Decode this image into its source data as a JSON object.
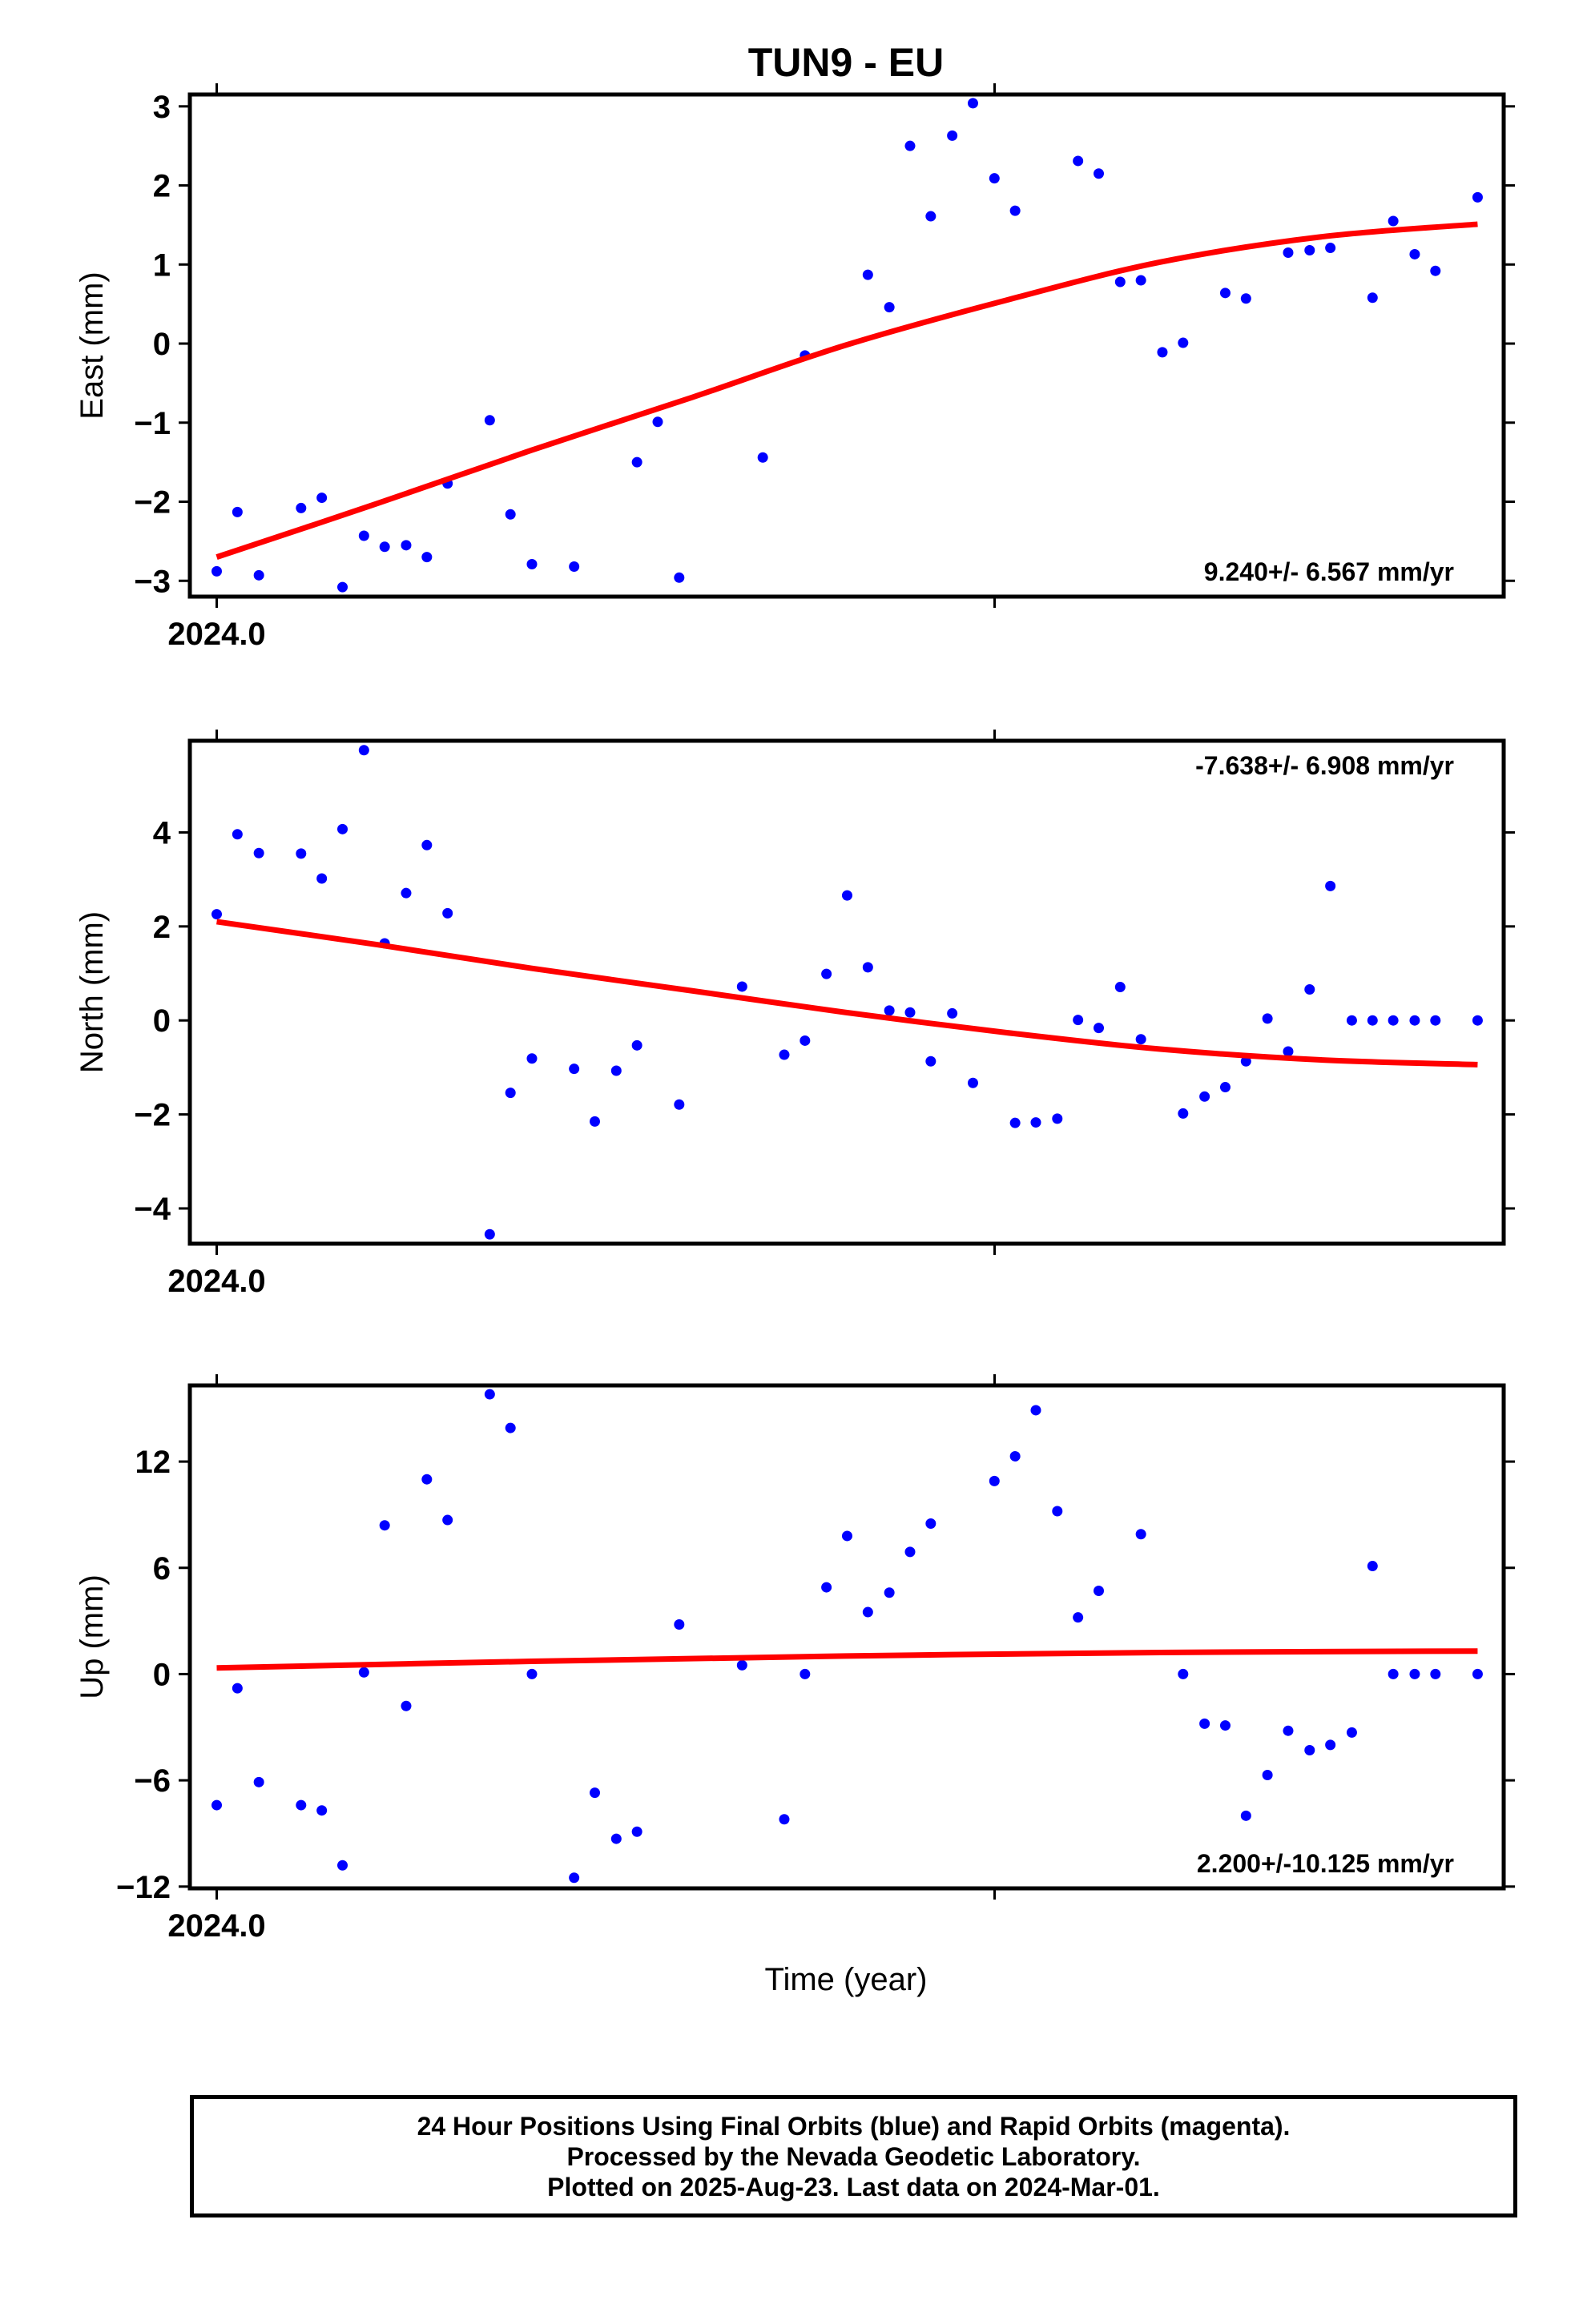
{
  "title": "TUN9 - EU",
  "xlabel": "Time (year)",
  "footer": {
    "line1": "24 Hour Positions Using Final Orbits (blue) and Rapid Orbits (magenta).",
    "line2": "Processed by the Nevada Geodetic Laboratory.",
    "line3": "Plotted on 2025-Aug-23. Last data on 2024-Mar-01."
  },
  "colors": {
    "points": "#0000ff",
    "fit": "#ff0000"
  },
  "chart_data": [
    {
      "type": "scatter",
      "ylabel": "East (mm)",
      "rate": "9.240+/- 6.567 mm/yr",
      "ylim": [
        -3.2,
        3.15
      ],
      "yticks": [
        -3,
        -2,
        -1,
        0,
        1,
        2,
        3
      ],
      "xlim": [
        2023.9965,
        2024.1678
      ],
      "xtick_labels": [
        {
          "x": 2024.0,
          "label": "2024.0"
        }
      ],
      "x": [
        2024.0,
        2024.0027,
        2024.0055,
        2024.011,
        2024.0137,
        2024.0164,
        2024.0192,
        2024.0219,
        2024.0247,
        2024.0274,
        2024.0301,
        2024.0356,
        2024.0383,
        2024.0411,
        2024.0466,
        2024.0548,
        2024.0575,
        2024.0603,
        2024.0712,
        2024.0767,
        2024.0849,
        2024.0877,
        2024.0904,
        2024.0931,
        2024.0959,
        2024.0986,
        2024.1014,
        2024.1041,
        2024.1123,
        2024.115,
        2024.1178,
        2024.1205,
        2024.1233,
        2024.126,
        2024.1315,
        2024.1342,
        2024.1397,
        2024.1425,
        2024.1452,
        2024.1507,
        2024.1534,
        2024.1562,
        2024.1589,
        2024.1644
      ],
      "y": [
        -2.88,
        -2.13,
        -2.93,
        -2.08,
        -1.95,
        -3.08,
        -2.43,
        -2.57,
        -2.55,
        -2.7,
        -1.77,
        -0.97,
        -2.16,
        -2.79,
        -2.82,
        -1.5,
        -0.99,
        -2.96,
        -1.44,
        -0.15,
        0.87,
        0.46,
        2.5,
        1.61,
        2.63,
        3.04,
        2.09,
        1.68,
        2.31,
        2.15,
        0.78,
        0.8,
        -0.11,
        0.01,
        0.64,
        0.57,
        1.15,
        1.18,
        1.21,
        0.58,
        1.55,
        1.13,
        0.92,
        1.85
      ],
      "fit": {
        "x": [
          2024.0,
          2024.021,
          2024.041,
          2024.062,
          2024.082,
          2024.103,
          2024.123,
          2024.144,
          2024.1644
        ],
        "y": [
          -2.7,
          -2.02,
          -1.35,
          -0.68,
          -0.02,
          0.55,
          1.03,
          1.35,
          1.51
        ]
      }
    },
    {
      "type": "scatter",
      "ylabel": "North (mm)",
      "rate": "-7.638+/- 6.908 mm/yr",
      "ylim": [
        -4.75,
        5.95
      ],
      "yticks": [
        -4,
        -2,
        0,
        2,
        4
      ],
      "xlim": [
        2023.9965,
        2024.1678
      ],
      "xtick_labels": [
        {
          "x": 2024.0,
          "label": "2024.0"
        }
      ],
      "x": [
        2024.0,
        2024.0027,
        2024.0055,
        2024.011,
        2024.0137,
        2024.0164,
        2024.0192,
        2024.0219,
        2024.0247,
        2024.0274,
        2024.0301,
        2024.0356,
        2024.0383,
        2024.0411,
        2024.0466,
        2024.0493,
        2024.0521,
        2024.0548,
        2024.0603,
        2024.0685,
        2024.074,
        2024.0767,
        2024.0795,
        2024.0822,
        2024.0849,
        2024.0877,
        2024.0904,
        2024.0931,
        2024.0959,
        2024.0986,
        2024.1041,
        2024.1068,
        2024.1096,
        2024.1123,
        2024.115,
        2024.1178,
        2024.1205,
        2024.126,
        2024.1288,
        2024.1315,
        2024.1342,
        2024.137,
        2024.1397,
        2024.1425,
        2024.1452,
        2024.148,
        2024.1507,
        2024.1534,
        2024.1562,
        2024.1589,
        2024.1644
      ],
      "y": [
        2.26,
        3.96,
        3.56,
        3.55,
        3.02,
        4.07,
        5.75,
        1.64,
        2.71,
        3.73,
        2.28,
        -4.55,
        -1.54,
        -0.81,
        -1.03,
        -2.15,
        -1.07,
        -0.53,
        -1.79,
        0.72,
        -0.73,
        -0.43,
        0.99,
        2.66,
        1.13,
        0.21,
        0.17,
        -0.87,
        0.15,
        -1.33,
        -2.18,
        -2.17,
        -2.09,
        0.01,
        -0.16,
        0.71,
        -0.4,
        -1.98,
        -1.62,
        -1.42,
        -0.87,
        0.04,
        -0.66,
        0.66,
        2.86,
        0.0,
        0.0,
        0.0,
        0.0,
        0.0,
        0.0
      ],
      "fit": {
        "x": [
          2024.0,
          2024.021,
          2024.041,
          2024.062,
          2024.082,
          2024.103,
          2024.123,
          2024.144,
          2024.1644
        ],
        "y": [
          2.1,
          1.61,
          1.11,
          0.63,
          0.17,
          -0.26,
          -0.61,
          -0.84,
          -0.94
        ]
      }
    },
    {
      "type": "scatter",
      "ylabel": "Up (mm)",
      "rate": "2.200+/-10.125 mm/yr",
      "ylim": [
        -12.1,
        16.3
      ],
      "yticks": [
        -12,
        -6,
        0,
        6,
        12
      ],
      "xlim": [
        2023.9965,
        2024.1678
      ],
      "xtick_labels": [
        {
          "x": 2024.0,
          "label": "2024.0"
        }
      ],
      "x": [
        2024.0,
        2024.0027,
        2024.0055,
        2024.011,
        2024.0137,
        2024.0164,
        2024.0192,
        2024.0219,
        2024.0247,
        2024.0274,
        2024.0301,
        2024.0356,
        2024.0383,
        2024.0411,
        2024.0466,
        2024.0493,
        2024.0521,
        2024.0548,
        2024.0603,
        2024.0685,
        2024.074,
        2024.0767,
        2024.0795,
        2024.0822,
        2024.0849,
        2024.0877,
        2024.0904,
        2024.0931,
        2024.1014,
        2024.1041,
        2024.1068,
        2024.1096,
        2024.1123,
        2024.115,
        2024.1205,
        2024.126,
        2024.1288,
        2024.1315,
        2024.1342,
        2024.137,
        2024.1397,
        2024.1425,
        2024.1452,
        2024.148,
        2024.1507,
        2024.1534,
        2024.1562,
        2024.1589,
        2024.1644
      ],
      "y": [
        -7.4,
        -0.8,
        -6.1,
        -7.4,
        -7.7,
        -10.8,
        0.1,
        8.4,
        -1.8,
        11.0,
        8.7,
        15.8,
        13.9,
        0.0,
        -11.5,
        -6.7,
        -9.3,
        -8.9,
        2.8,
        0.5,
        -8.2,
        0.0,
        4.9,
        7.8,
        3.5,
        4.6,
        6.9,
        8.5,
        10.9,
        12.3,
        14.9,
        9.2,
        3.2,
        4.7,
        7.9,
        0.0,
        -2.8,
        -2.9,
        -8.0,
        -5.7,
        -3.2,
        -4.3,
        -4.0,
        -3.3,
        6.1,
        0.0,
        0.0,
        0.0,
        0.0
      ],
      "fit": {
        "x": [
          2024.0,
          2024.041,
          2024.082,
          2024.123,
          2024.1644
        ],
        "y": [
          0.35,
          0.72,
          1.02,
          1.22,
          1.3
        ]
      }
    }
  ]
}
